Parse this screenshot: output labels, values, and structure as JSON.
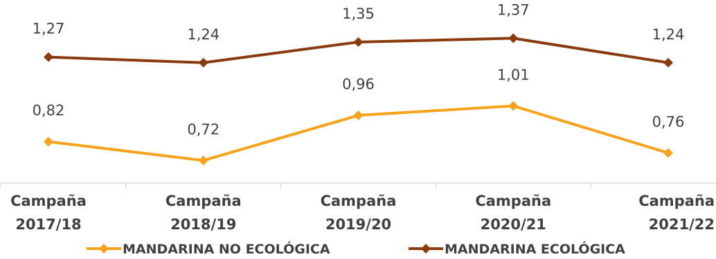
{
  "chart_data": {
    "type": "line",
    "categories": [
      "Campaña\n2017/18",
      "Campaña\n2018/19",
      "Campaña\n2019/20",
      "Campaña\n2020/21",
      "Campaña\n2021/22"
    ],
    "series": [
      {
        "name": "MANDARINA NO ECOLÓGICA",
        "values": [
          0.82,
          0.72,
          0.96,
          1.01,
          0.76
        ],
        "labels": [
          "0,82",
          "0,72",
          "0,96",
          "1,01",
          "0,76"
        ],
        "color": "#f7a21b",
        "marker": "diamond"
      },
      {
        "name": "MANDARINA ECOLÓGICA",
        "values": [
          1.27,
          1.24,
          1.35,
          1.37,
          1.24
        ],
        "labels": [
          "1,27",
          "1,24",
          "1,35",
          "1,37",
          "1,24"
        ],
        "color": "#8b3a0f",
        "marker": "diamond"
      }
    ],
    "ylim": [
      0.6,
      1.5
    ],
    "axis_color": "#d9d9d9",
    "grid": false,
    "legend_position": "bottom",
    "title": "",
    "xlabel": "",
    "ylabel": ""
  }
}
